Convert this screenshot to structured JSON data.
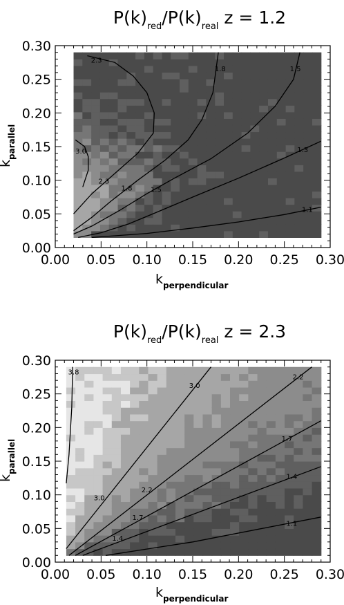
{
  "chart_data": [
    {
      "type": "contour",
      "title": {
        "main": "P(k)",
        "sub1": "red",
        "mid": "/P(k)",
        "sub2": "real",
        "tail": " z = 1.2"
      },
      "xlabel": {
        "main": "k",
        "sub": "perpendicular"
      },
      "ylabel": {
        "main": "k",
        "sub": "parallel"
      },
      "xlim": [
        0.0,
        0.3
      ],
      "ylim": [
        0.0,
        0.3
      ],
      "xticks": [
        "0.00",
        "0.05",
        "0.10",
        "0.15",
        "0.20",
        "0.25",
        "0.30"
      ],
      "yticks": [
        "0.00",
        "0.05",
        "0.10",
        "0.15",
        "0.20",
        "0.25",
        "0.30"
      ],
      "data_extent": {
        "x": [
          0.02,
          0.29
        ],
        "y": [
          0.015,
          0.29
        ]
      },
      "fill_levels": [
        {
          "min": 0.0,
          "color": "#4a4a4a"
        },
        {
          "min": 1.2,
          "color": "#5f5f5f"
        },
        {
          "min": 1.4,
          "color": "#767676"
        },
        {
          "min": 1.65,
          "color": "#8c8c8c"
        },
        {
          "min": 2.05,
          "color": "#a6a6a6"
        },
        {
          "min": 2.65,
          "color": "#c7c7c7"
        },
        {
          "min": 3.3,
          "color": "#e6e6e6"
        }
      ],
      "model": {
        "form": "ratio_mu2",
        "A": 3.4,
        "s": 0.13
      },
      "contour_lines": [
        {
          "level": "1.1",
          "points": [
            [
              0.04,
              0.015
            ],
            [
              0.1,
              0.021
            ],
            [
              0.15,
              0.029
            ],
            [
              0.2,
              0.038
            ],
            [
              0.25,
              0.049
            ],
            [
              0.29,
              0.06
            ]
          ],
          "label_pos": [
            0.275,
            0.056
          ]
        },
        {
          "level": "1.3",
          "points": [
            [
              0.025,
              0.015
            ],
            [
              0.05,
              0.022
            ],
            [
              0.08,
              0.035
            ],
            [
              0.11,
              0.052
            ],
            [
              0.15,
              0.075
            ],
            [
              0.2,
              0.103
            ],
            [
              0.25,
              0.133
            ],
            [
              0.29,
              0.158
            ]
          ],
          "label_pos": [
            0.27,
            0.145
          ]
        },
        {
          "level": "1.5",
          "points": [
            [
              0.02,
              0.02
            ],
            [
              0.04,
              0.032
            ],
            [
              0.07,
              0.055
            ],
            [
              0.1,
              0.08
            ],
            [
              0.13,
              0.103
            ],
            [
              0.17,
              0.132
            ],
            [
              0.21,
              0.17
            ],
            [
              0.24,
              0.21
            ],
            [
              0.26,
              0.25
            ],
            [
              0.267,
              0.29
            ]
          ],
          "label_pos": [
            0.11,
            0.086
          ]
        },
        {
          "level": "1.8",
          "points": [
            [
              0.02,
              0.025
            ],
            [
              0.04,
              0.045
            ],
            [
              0.06,
              0.068
            ],
            [
              0.09,
              0.1
            ],
            [
              0.12,
              0.13
            ],
            [
              0.145,
              0.16
            ],
            [
              0.16,
              0.19
            ],
            [
              0.172,
              0.23
            ],
            [
              0.178,
              0.29
            ]
          ],
          "label_pos": [
            0.078,
            0.088
          ]
        },
        {
          "level": "2.3",
          "points": [
            [
              0.02,
              0.05
            ],
            [
              0.04,
              0.08
            ],
            [
              0.065,
              0.11
            ],
            [
              0.09,
              0.14
            ],
            [
              0.107,
              0.17
            ],
            [
              0.108,
              0.2
            ],
            [
              0.1,
              0.23
            ],
            [
              0.085,
              0.255
            ],
            [
              0.065,
              0.275
            ],
            [
              0.035,
              0.285
            ]
          ],
          "label_pos": [
            0.053,
            0.098
          ]
        },
        {
          "level": "3.0",
          "points": [
            [
              0.03,
              0.09
            ],
            [
              0.036,
              0.115
            ],
            [
              0.036,
              0.135
            ],
            [
              0.032,
              0.15
            ],
            [
              0.022,
              0.16
            ]
          ],
          "label_pos": [
            0.028,
            0.143
          ]
        }
      ],
      "extra_labels": [
        {
          "text": "2.3",
          "pos": [
            0.045,
            0.278
          ]
        },
        {
          "text": "1.8",
          "pos": [
            0.18,
            0.265
          ]
        },
        {
          "text": "1.5",
          "pos": [
            0.262,
            0.265
          ]
        }
      ]
    },
    {
      "type": "contour",
      "title": {
        "main": "P(k)",
        "sub1": "red",
        "mid": "/P(k)",
        "sub2": "real",
        "tail": " z = 2.3"
      },
      "xlabel": {
        "main": "k",
        "sub": "perpendicular"
      },
      "ylabel": {
        "main": "k",
        "sub": "parallel"
      },
      "xlim": [
        0.0,
        0.3
      ],
      "ylim": [
        0.0,
        0.3
      ],
      "xticks": [
        "0.00",
        "0.05",
        "0.10",
        "0.15",
        "0.20",
        "0.25",
        "0.30"
      ],
      "yticks": [
        "0.00",
        "0.05",
        "0.10",
        "0.15",
        "0.20",
        "0.25",
        "0.30"
      ],
      "data_extent": {
        "x": [
          0.012,
          0.29
        ],
        "y": [
          0.01,
          0.29
        ]
      },
      "fill_levels": [
        {
          "min": 0.0,
          "color": "#4a4a4a"
        },
        {
          "min": 1.25,
          "color": "#5f5f5f"
        },
        {
          "min": 1.55,
          "color": "#767676"
        },
        {
          "min": 1.95,
          "color": "#8c8c8c"
        },
        {
          "min": 2.6,
          "color": "#a6a6a6"
        },
        {
          "min": 3.3,
          "color": "#c7c7c7"
        },
        {
          "min": 3.65,
          "color": "#e6e6e6"
        }
      ],
      "model": {
        "form": "kaiser",
        "b": 0.95
      },
      "contour_lines": [
        {
          "level": "1.1",
          "points": [
            [
              0.055,
              0.01
            ],
            [
              0.15,
              0.03
            ],
            [
              0.29,
              0.067
            ]
          ],
          "label_pos": [
            0.258,
            0.057
          ]
        },
        {
          "level": "1.4",
          "points": [
            [
              0.03,
              0.01
            ],
            [
              0.29,
              0.142
            ]
          ],
          "label_pos": [
            0.258,
            0.127
          ]
        },
        {
          "level": "1.7",
          "points": [
            [
              0.022,
              0.01
            ],
            [
              0.29,
              0.21
            ]
          ],
          "label_pos": [
            0.253,
            0.183
          ]
        },
        {
          "level": "2.2",
          "points": [
            [
              0.015,
              0.01
            ],
            [
              0.28,
              0.29
            ]
          ],
          "label_pos": [
            0.265,
            0.275
          ]
        },
        {
          "level": "3.0",
          "points": [
            [
              0.012,
              0.02
            ],
            [
              0.17,
              0.29
            ]
          ],
          "label_pos": [
            0.152,
            0.262
          ]
        },
        {
          "level": "3.8",
          "points": [
            [
              0.012,
              0.117
            ],
            [
              0.015,
              0.16
            ],
            [
              0.018,
              0.23
            ],
            [
              0.019,
              0.29
            ]
          ],
          "label_pos": [
            0.02,
            0.282
          ]
        }
      ],
      "extra_labels": [
        {
          "text": "1.4",
          "pos": [
            0.068,
            0.035
          ]
        },
        {
          "text": "1.7",
          "pos": [
            0.09,
            0.066
          ]
        },
        {
          "text": "2.2",
          "pos": [
            0.1,
            0.107
          ]
        },
        {
          "text": "3.0",
          "pos": [
            0.048,
            0.095
          ]
        }
      ]
    }
  ]
}
